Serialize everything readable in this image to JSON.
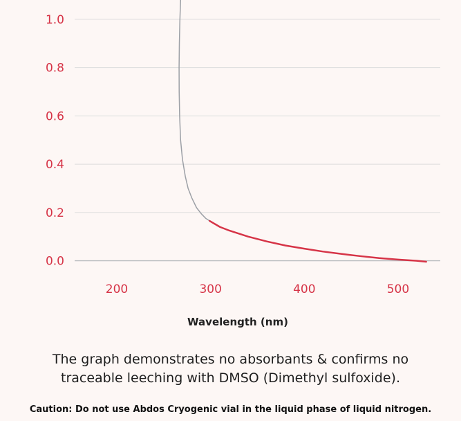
{
  "chart_data": {
    "type": "line",
    "xlabel": "Wavelength (nm)",
    "ylabel": "",
    "xlim": [
      155,
      545
    ],
    "ylim": [
      -0.05,
      1.08
    ],
    "x_ticks": [
      200,
      300,
      400,
      500
    ],
    "y_ticks": [
      0.0,
      0.2,
      0.4,
      0.6,
      0.8,
      1.0
    ],
    "x_tick_labels": [
      "200",
      "300",
      "400",
      "500"
    ],
    "y_tick_labels": [
      "0.0",
      "0.2",
      "0.4",
      "0.6",
      "0.8",
      "1.0"
    ],
    "grid": true,
    "series": [
      {
        "color": "#9ca0a6",
        "x": [
          268,
          267.3,
          266.7,
          266.4,
          266.5,
          267,
          268,
          270,
          273,
          276,
          280,
          285,
          290,
          295,
          299
        ],
        "y": [
          1.08,
          1.0,
          0.9,
          0.8,
          0.7,
          0.6,
          0.5,
          0.42,
          0.35,
          0.3,
          0.26,
          0.22,
          0.195,
          0.175,
          0.165
        ]
      },
      {
        "color": "#d63447",
        "x": [
          299,
          310,
          320,
          340,
          360,
          380,
          400,
          420,
          440,
          460,
          480,
          500,
          520,
          530
        ],
        "y": [
          0.165,
          0.14,
          0.125,
          0.1,
          0.08,
          0.063,
          0.05,
          0.038,
          0.028,
          0.019,
          0.011,
          0.005,
          0.0,
          -0.004
        ]
      }
    ]
  },
  "description": {
    "line1": "The graph demonstrates no absorbants & confirms no",
    "line2": "traceable leeching with DMSO (Dimethyl sulfoxide)."
  },
  "caution": {
    "line1": "Caution: Do not use Abdos Cryogenic vial in the liquid phase of liquid nitrogen."
  }
}
